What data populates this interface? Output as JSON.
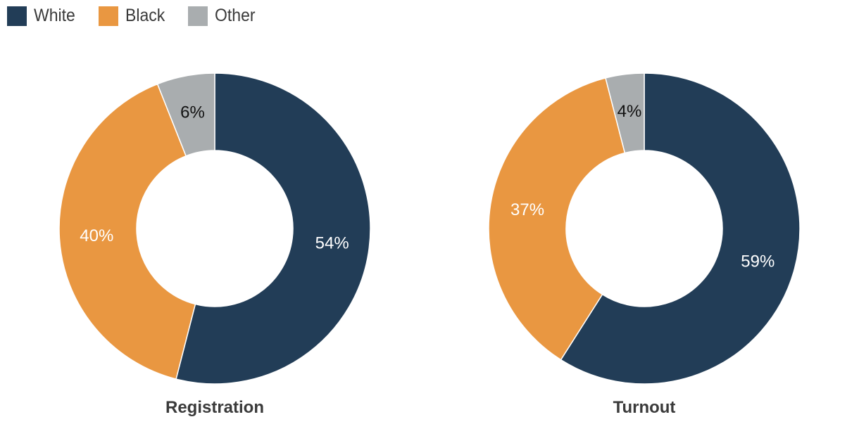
{
  "legend": [
    {
      "label": "White",
      "color": "#223d57"
    },
    {
      "label": "Black",
      "color": "#e99741"
    },
    {
      "label": "Other",
      "color": "#a9adaf"
    }
  ],
  "chart_data": [
    {
      "type": "pie",
      "title": "Registration",
      "categories": [
        "White",
        "Black",
        "Other"
      ],
      "values": [
        54,
        40,
        6
      ],
      "labels": [
        "54%",
        "40%",
        "6%"
      ],
      "colors": [
        "#223d57",
        "#e99741",
        "#a9adaf"
      ],
      "label_colors": [
        "#ffffff",
        "#ffffff",
        "#111111"
      ],
      "legend_position": "top-left"
    },
    {
      "type": "pie",
      "title": "Turnout",
      "categories": [
        "White",
        "Black",
        "Other"
      ],
      "values": [
        59,
        37,
        4
      ],
      "labels": [
        "59%",
        "37%",
        "4%"
      ],
      "colors": [
        "#223d57",
        "#e99741",
        "#a9adaf"
      ],
      "label_colors": [
        "#ffffff",
        "#ffffff",
        "#111111"
      ],
      "legend_position": "top-left"
    }
  ]
}
